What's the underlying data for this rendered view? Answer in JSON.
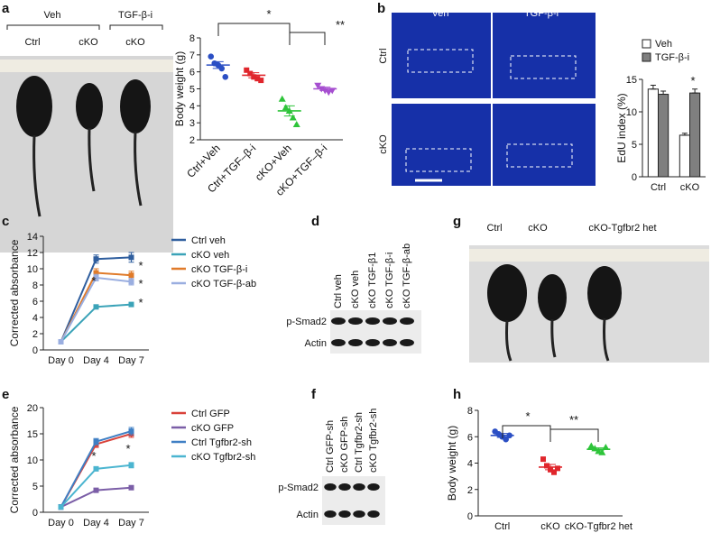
{
  "panel_labels": [
    "a",
    "b",
    "c",
    "d",
    "e",
    "f",
    "g",
    "h"
  ],
  "panel_a_photo": {
    "groups": [
      "Veh",
      "TGF-β-i"
    ],
    "labels": [
      "Ctrl",
      "cKO",
      "cKO"
    ]
  },
  "panel_b_images": {
    "columns": [
      "Veh",
      "TGF-β-i"
    ],
    "rows": [
      "Ctrl",
      "cKO"
    ]
  },
  "panel_d_blot": {
    "lanes": [
      "Ctrl veh",
      "cKO veh",
      "cKO TGF-β1",
      "cKO TGF-β-i",
      "cKO TGF-β-ab"
    ],
    "rows": [
      "p-Smad2",
      "Actin"
    ]
  },
  "panel_f_blot": {
    "lanes": [
      "Ctrl GFP-sh",
      "cKO GFP-sh",
      "Ctrl Tgfbr2-sh",
      "cKO Tgfbr2-sh"
    ],
    "rows": [
      "p-Smad2",
      "Actin"
    ]
  },
  "panel_g_photo": {
    "labels": [
      "Ctrl",
      "cKO",
      "cKO-Tgfbr2 het"
    ]
  },
  "chart_data": [
    {
      "type": "dotplot",
      "y_label": "Body weight (g)",
      "categories": [
        "Ctrl+Veh",
        "Ctrl+TGF–β-i",
        "cKO+Veh",
        "cKO+TGF–β-i"
      ],
      "colors": [
        "#2b4fc4",
        "#e0262c",
        "#2ec43a",
        "#a64fd0"
      ],
      "values": [
        [
          6.9,
          6.5,
          6.4,
          6.2,
          5.7
        ],
        [
          6.1,
          5.9,
          5.7,
          5.6,
          5.5
        ],
        [
          4.4,
          3.9,
          3.7,
          3.3,
          2.9
        ],
        [
          5.2,
          5.0,
          4.9,
          4.8,
          4.9
        ]
      ],
      "means": [
        6.4,
        5.8,
        3.7,
        5.0
      ],
      "errors": [
        0.2,
        0.15,
        0.3,
        0.1
      ],
      "ylim": [
        2,
        8
      ],
      "yticks": [
        2,
        3,
        4,
        5,
        6,
        7,
        8
      ],
      "annotations": [
        "*",
        "**"
      ]
    },
    {
      "type": "bar",
      "y_label": "EdU index (%)",
      "categories": [
        "Ctrl",
        "cKO"
      ],
      "series": [
        {
          "name": "Veh",
          "color": "#ffffff",
          "values": [
            13.5,
            6.4
          ],
          "errors": [
            0.6,
            0.3
          ]
        },
        {
          "name": "TGF-β-i",
          "color": "#7f7f7f",
          "values": [
            12.7,
            12.9
          ],
          "errors": [
            0.5,
            0.6
          ]
        }
      ],
      "ylim": [
        0,
        15
      ],
      "yticks": [
        0,
        5,
        10,
        15
      ],
      "annotations": [
        "*"
      ]
    },
    {
      "type": "line",
      "y_label": "Corrected absorbance",
      "categories": [
        "Day 0",
        "Day 4",
        "Day 7"
      ],
      "series": [
        {
          "name": "Ctrl veh",
          "color": "#2f5e9e",
          "values": [
            1,
            11.2,
            11.4
          ],
          "errors": [
            0,
            0.5,
            0.6
          ]
        },
        {
          "name": "cKO veh",
          "color": "#3ba3b8",
          "values": [
            1,
            5.3,
            5.6
          ],
          "errors": [
            0,
            0.2,
            0.2
          ]
        },
        {
          "name": "cKO TGF-β-i",
          "color": "#e07b2a",
          "values": [
            1,
            9.5,
            9.2
          ],
          "errors": [
            0,
            0.5,
            0.5
          ]
        },
        {
          "name": "cKO TGF-β-ab",
          "color": "#9aaee0",
          "values": [
            1,
            8.9,
            8.4
          ],
          "errors": [
            0,
            0.4,
            0.4
          ]
        }
      ],
      "ylim": [
        0,
        14
      ],
      "yticks": [
        0,
        2,
        4,
        6,
        8,
        10,
        12,
        14
      ],
      "annotations": [
        "*",
        "*",
        "*",
        "*"
      ]
    },
    {
      "type": "line",
      "y_label": "Corrected absorbance",
      "categories": [
        "Day 0",
        "Day 4",
        "Day 7"
      ],
      "series": [
        {
          "name": "Ctrl GFP",
          "color": "#d9423a",
          "values": [
            1,
            13,
            15
          ],
          "errors": [
            0,
            0.6,
            0.7
          ]
        },
        {
          "name": "cKO GFP",
          "color": "#7b5ea7",
          "values": [
            1,
            4.2,
            4.7
          ],
          "errors": [
            0,
            0.2,
            0.2
          ]
        },
        {
          "name": "Ctrl Tgfbr2-sh",
          "color": "#3f7fc4",
          "values": [
            1,
            13.5,
            15.5
          ],
          "errors": [
            0,
            0.6,
            0.7
          ]
        },
        {
          "name": "cKO Tgfbr2-sh",
          "color": "#4bb5d0",
          "values": [
            1,
            8.3,
            9
          ],
          "errors": [
            0,
            0.4,
            0.5
          ]
        }
      ],
      "ylim": [
        0,
        20
      ],
      "yticks": [
        0,
        5,
        10,
        15,
        20
      ],
      "annotations": [
        "*",
        "*"
      ]
    },
    {
      "type": "dotplot",
      "y_label": "Body weight (g)",
      "categories": [
        "Ctrl",
        "cKO",
        "cKO-Tgfbr2 het"
      ],
      "colors": [
        "#2b4fc4",
        "#e0262c",
        "#2ec43a"
      ],
      "values": [
        [
          6.4,
          6.2,
          6.0,
          5.8,
          6.1
        ],
        [
          4.3,
          3.8,
          3.5,
          3.3,
          3.6
        ],
        [
          5.3,
          5.1,
          4.9,
          4.8,
          5.2
        ]
      ],
      "means": [
        6.1,
        3.7,
        5.05
      ],
      "errors": [
        0.15,
        0.2,
        0.1
      ],
      "ylim": [
        0,
        8
      ],
      "yticks": [
        0,
        2,
        4,
        6,
        8
      ],
      "annotations": [
        "*",
        "**"
      ]
    }
  ]
}
